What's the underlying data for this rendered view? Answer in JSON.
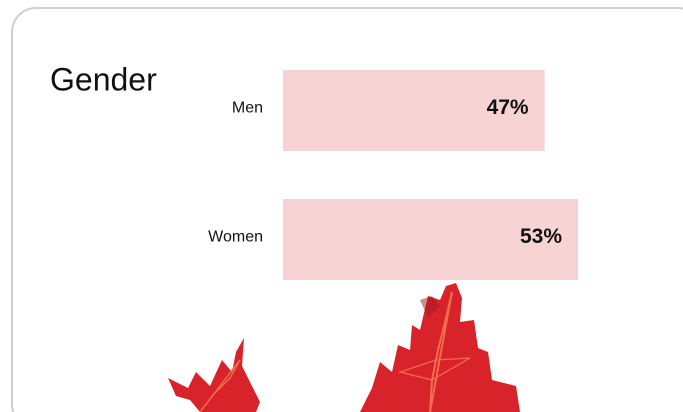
{
  "chart_data": {
    "type": "bar",
    "orientation": "horizontal",
    "title": "Gender",
    "categories": [
      "Men",
      "Women"
    ],
    "values": [
      47,
      53
    ],
    "value_labels": [
      "47%",
      "53%"
    ],
    "color": "#f8d3d4"
  }
}
